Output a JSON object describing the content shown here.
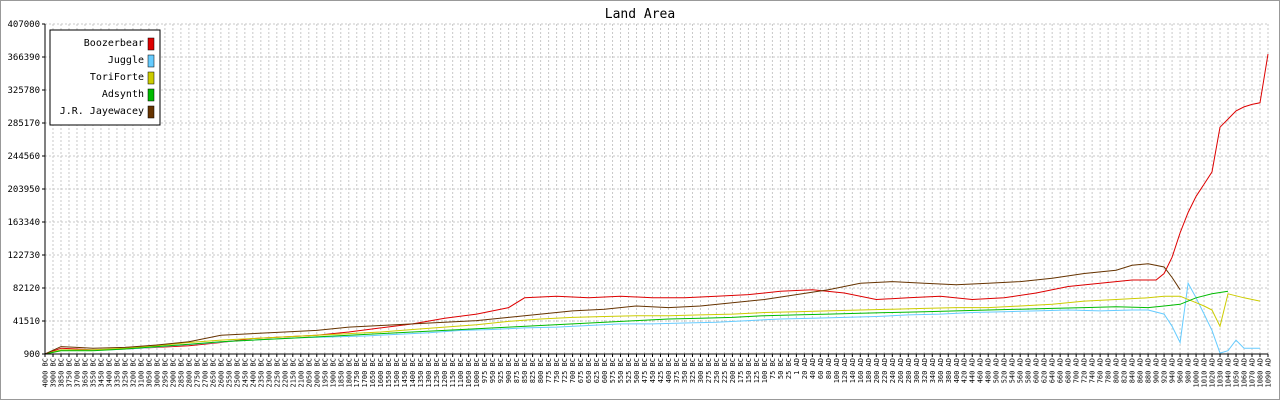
{
  "chart_data": {
    "type": "line",
    "title": "Land Area",
    "xlabel": "",
    "ylabel": "",
    "ylim": [
      900,
      407000
    ],
    "yticks": [
      900,
      41510,
      82120,
      122730,
      163340,
      203950,
      244560,
      285170,
      325780,
      366390,
      407000
    ],
    "grid": true,
    "legend_position": "top-left",
    "x_tick_labels": [
      "4000 BC",
      "3900 BC",
      "3850 BC",
      "3750 BC",
      "3700 BC",
      "3650 BC",
      "3550 BC",
      "3450 BC",
      "3400 BC",
      "3350 BC",
      "3250 BC",
      "3200 BC",
      "3100 BC",
      "3050 BC",
      "3000 BC",
      "2950 BC",
      "2900 BC",
      "2850 BC",
      "2800 BC",
      "2750 BC",
      "2700 BC",
      "2650 BC",
      "2600 BC",
      "2550 BC",
      "2500 BC",
      "2450 BC",
      "2400 BC",
      "2350 BC",
      "2300 BC",
      "2250 BC",
      "2200 BC",
      "2150 BC",
      "2100 BC",
      "2050 BC",
      "2000 BC",
      "1950 BC",
      "1900 BC",
      "1850 BC",
      "1800 BC",
      "1750 BC",
      "1700 BC",
      "1650 BC",
      "1600 BC",
      "1550 BC",
      "1500 BC",
      "1450 BC",
      "1400 BC",
      "1350 BC",
      "1300 BC",
      "1250 BC",
      "1200 BC",
      "1150 BC",
      "1100 BC",
      "1050 BC",
      "1000 BC",
      "975 BC",
      "950 BC",
      "925 BC",
      "900 BC",
      "875 BC",
      "850 BC",
      "825 BC",
      "800 BC",
      "775 BC",
      "750 BC",
      "725 BC",
      "700 BC",
      "675 BC",
      "650 BC",
      "625 BC",
      "600 BC",
      "575 BC",
      "550 BC",
      "525 BC",
      "500 BC",
      "475 BC",
      "450 BC",
      "425 BC",
      "400 BC",
      "375 BC",
      "350 BC",
      "325 BC",
      "300 BC",
      "275 BC",
      "250 BC",
      "225 BC",
      "200 BC",
      "175 BC",
      "150 BC",
      "125 BC",
      "100 BC",
      "75 BC",
      "50 BC",
      "25 BC",
      "1 AD",
      "20 AD",
      "40 AD",
      "60 AD",
      "80 AD",
      "100 AD",
      "120 AD",
      "140 AD",
      "160 AD",
      "180 AD",
      "200 AD",
      "220 AD",
      "240 AD",
      "260 AD",
      "280 AD",
      "300 AD",
      "320 AD",
      "340 AD",
      "360 AD",
      "380 AD",
      "400 AD",
      "420 AD",
      "440 AD",
      "460 AD",
      "480 AD",
      "500 AD",
      "520 AD",
      "540 AD",
      "560 AD",
      "580 AD",
      "600 AD",
      "620 AD",
      "640 AD",
      "660 AD",
      "680 AD",
      "700 AD",
      "720 AD",
      "740 AD",
      "760 AD",
      "780 AD",
      "800 AD",
      "820 AD",
      "840 AD",
      "860 AD",
      "880 AD",
      "900 AD",
      "920 AD",
      "940 AD",
      "960 AD",
      "980 AD",
      "1000 AD",
      "1010 AD",
      "1020 AD",
      "1030 AD",
      "1040 AD",
      "1050 AD",
      "1060 AD",
      "1070 AD",
      "1080 AD",
      "1090 AD"
    ],
    "series": [
      {
        "name": "Boozerbear",
        "color": "#dd0000",
        "points": [
          [
            0,
            900
          ],
          [
            2,
            8000
          ],
          [
            4,
            7000
          ],
          [
            6,
            6000
          ],
          [
            10,
            7000
          ],
          [
            14,
            9000
          ],
          [
            18,
            11000
          ],
          [
            22,
            15000
          ],
          [
            26,
            20000
          ],
          [
            30,
            22000
          ],
          [
            34,
            24000
          ],
          [
            38,
            28000
          ],
          [
            42,
            33000
          ],
          [
            46,
            38000
          ],
          [
            50,
            45000
          ],
          [
            54,
            50000
          ],
          [
            58,
            58000
          ],
          [
            60,
            70000
          ],
          [
            64,
            72000
          ],
          [
            68,
            70000
          ],
          [
            72,
            72000
          ],
          [
            76,
            70000
          ],
          [
            80,
            70000
          ],
          [
            84,
            72000
          ],
          [
            88,
            74000
          ],
          [
            92,
            78000
          ],
          [
            96,
            80000
          ],
          [
            100,
            76000
          ],
          [
            104,
            68000
          ],
          [
            108,
            70000
          ],
          [
            112,
            72000
          ],
          [
            116,
            68000
          ],
          [
            120,
            70000
          ],
          [
            124,
            76000
          ],
          [
            128,
            84000
          ],
          [
            132,
            88000
          ],
          [
            136,
            92000
          ],
          [
            139,
            92000
          ],
          [
            140,
            100000
          ],
          [
            141,
            120000
          ],
          [
            142,
            150000
          ],
          [
            143,
            175000
          ],
          [
            144,
            195000
          ],
          [
            145,
            210000
          ],
          [
            146,
            225000
          ],
          [
            147,
            280000
          ],
          [
            148,
            290000
          ],
          [
            149,
            300000
          ],
          [
            150,
            305000
          ],
          [
            151,
            308000
          ],
          [
            152,
            310000
          ],
          [
            153,
            370000
          ]
        ]
      },
      {
        "name": "Juggle",
        "color": "#66ccff",
        "points": [
          [
            0,
            900
          ],
          [
            2,
            6000
          ],
          [
            4,
            6000
          ],
          [
            8,
            6000
          ],
          [
            12,
            8000
          ],
          [
            16,
            11000
          ],
          [
            20,
            14000
          ],
          [
            24,
            17000
          ],
          [
            28,
            19000
          ],
          [
            32,
            21000
          ],
          [
            36,
            22000
          ],
          [
            40,
            23000
          ],
          [
            44,
            25000
          ],
          [
            48,
            27000
          ],
          [
            52,
            30000
          ],
          [
            56,
            31000
          ],
          [
            60,
            33000
          ],
          [
            64,
            34000
          ],
          [
            68,
            36000
          ],
          [
            72,
            38000
          ],
          [
            76,
            38000
          ],
          [
            80,
            39000
          ],
          [
            84,
            40000
          ],
          [
            88,
            42000
          ],
          [
            92,
            44000
          ],
          [
            96,
            45000
          ],
          [
            100,
            46000
          ],
          [
            104,
            47000
          ],
          [
            108,
            49000
          ],
          [
            112,
            50000
          ],
          [
            116,
            52000
          ],
          [
            120,
            53000
          ],
          [
            124,
            54000
          ],
          [
            128,
            55000
          ],
          [
            132,
            54000
          ],
          [
            136,
            55000
          ],
          [
            138,
            55000
          ],
          [
            140,
            50000
          ],
          [
            141,
            35000
          ],
          [
            142,
            15000
          ],
          [
            143,
            88000
          ],
          [
            144,
            70000
          ],
          [
            145,
            50000
          ],
          [
            146,
            30000
          ],
          [
            147,
            2000
          ],
          [
            148,
            5000
          ],
          [
            149,
            18000
          ],
          [
            150,
            8000
          ],
          [
            152,
            8000
          ]
        ]
      },
      {
        "name": "ToriForte",
        "color": "#cccc00",
        "points": [
          [
            0,
            900
          ],
          [
            2,
            6000
          ],
          [
            6,
            6000
          ],
          [
            10,
            8000
          ],
          [
            14,
            11000
          ],
          [
            18,
            15000
          ],
          [
            22,
            18000
          ],
          [
            26,
            20000
          ],
          [
            30,
            22000
          ],
          [
            34,
            24000
          ],
          [
            38,
            26000
          ],
          [
            42,
            28000
          ],
          [
            46,
            31000
          ],
          [
            50,
            34000
          ],
          [
            54,
            37000
          ],
          [
            58,
            41000
          ],
          [
            62,
            44000
          ],
          [
            66,
            46000
          ],
          [
            70,
            47000
          ],
          [
            74,
            48000
          ],
          [
            78,
            48000
          ],
          [
            82,
            49000
          ],
          [
            86,
            50000
          ],
          [
            90,
            52000
          ],
          [
            94,
            53000
          ],
          [
            98,
            54000
          ],
          [
            102,
            55000
          ],
          [
            106,
            56000
          ],
          [
            110,
            57000
          ],
          [
            114,
            58000
          ],
          [
            118,
            58000
          ],
          [
            122,
            60000
          ],
          [
            126,
            62000
          ],
          [
            130,
            66000
          ],
          [
            134,
            68000
          ],
          [
            138,
            70000
          ],
          [
            140,
            72000
          ],
          [
            142,
            72000
          ],
          [
            144,
            64000
          ],
          [
            145,
            60000
          ],
          [
            146,
            55000
          ],
          [
            147,
            35000
          ],
          [
            148,
            75000
          ],
          [
            150,
            70000
          ],
          [
            152,
            66000
          ]
        ]
      },
      {
        "name": "Adsynth",
        "color": "#00bb00",
        "points": [
          [
            0,
            900
          ],
          [
            2,
            5000
          ],
          [
            6,
            5000
          ],
          [
            10,
            7000
          ],
          [
            14,
            10000
          ],
          [
            18,
            13000
          ],
          [
            22,
            16000
          ],
          [
            26,
            18000
          ],
          [
            30,
            20000
          ],
          [
            34,
            22000
          ],
          [
            38,
            24000
          ],
          [
            42,
            26000
          ],
          [
            46,
            28000
          ],
          [
            50,
            30000
          ],
          [
            54,
            32000
          ],
          [
            58,
            34000
          ],
          [
            62,
            36000
          ],
          [
            66,
            38000
          ],
          [
            70,
            40000
          ],
          [
            74,
            42000
          ],
          [
            78,
            44000
          ],
          [
            82,
            45000
          ],
          [
            86,
            46000
          ],
          [
            90,
            48000
          ],
          [
            94,
            49000
          ],
          [
            98,
            50000
          ],
          [
            102,
            51000
          ],
          [
            106,
            52000
          ],
          [
            110,
            53000
          ],
          [
            114,
            54000
          ],
          [
            118,
            55000
          ],
          [
            122,
            56000
          ],
          [
            126,
            57000
          ],
          [
            130,
            58000
          ],
          [
            134,
            59000
          ],
          [
            138,
            58000
          ],
          [
            140,
            60000
          ],
          [
            142,
            62000
          ],
          [
            144,
            70000
          ],
          [
            146,
            75000
          ],
          [
            148,
            78000
          ]
        ]
      },
      {
        "name": "J.R. Jayewacey",
        "color": "#663300",
        "points": [
          [
            0,
            900
          ],
          [
            2,
            10000
          ],
          [
            4,
            9000
          ],
          [
            6,
            8000
          ],
          [
            10,
            9000
          ],
          [
            14,
            12000
          ],
          [
            18,
            16000
          ],
          [
            22,
            24000
          ],
          [
            26,
            26000
          ],
          [
            30,
            28000
          ],
          [
            34,
            30000
          ],
          [
            38,
            34000
          ],
          [
            42,
            36000
          ],
          [
            46,
            38000
          ],
          [
            50,
            40000
          ],
          [
            54,
            42000
          ],
          [
            58,
            46000
          ],
          [
            62,
            50000
          ],
          [
            66,
            54000
          ],
          [
            70,
            56000
          ],
          [
            74,
            60000
          ],
          [
            78,
            58000
          ],
          [
            82,
            60000
          ],
          [
            86,
            64000
          ],
          [
            90,
            68000
          ],
          [
            94,
            74000
          ],
          [
            98,
            80000
          ],
          [
            102,
            88000
          ],
          [
            106,
            90000
          ],
          [
            110,
            88000
          ],
          [
            114,
            86000
          ],
          [
            118,
            88000
          ],
          [
            122,
            90000
          ],
          [
            126,
            94000
          ],
          [
            130,
            100000
          ],
          [
            134,
            104000
          ],
          [
            136,
            110000
          ],
          [
            138,
            112000
          ],
          [
            140,
            108000
          ],
          [
            141,
            95000
          ],
          [
            142,
            80000
          ]
        ]
      }
    ]
  }
}
